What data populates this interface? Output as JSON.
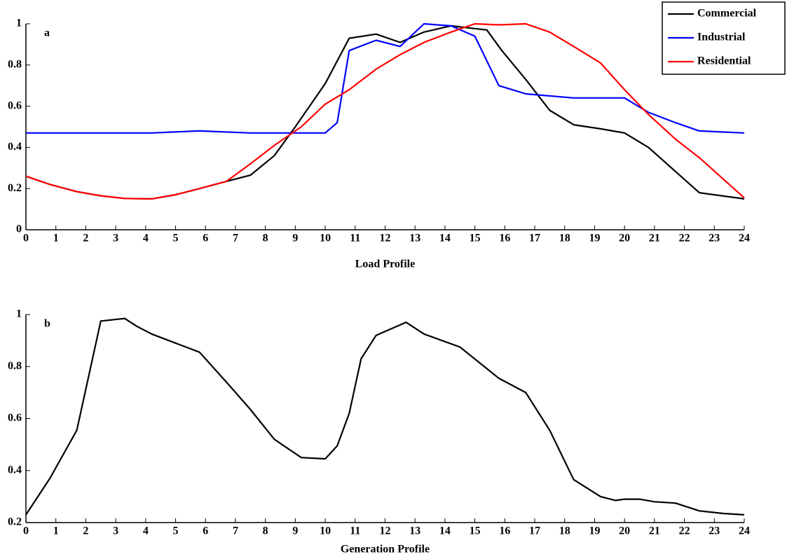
{
  "chart_data": [
    {
      "type": "line",
      "annotation": "a",
      "xlabel": "Load Profile",
      "xlim": [
        0,
        24
      ],
      "ylim": [
        0,
        1
      ],
      "xticks": [
        0,
        1,
        2,
        3,
        4,
        5,
        6,
        7,
        8,
        9,
        10,
        11,
        12,
        13,
        14,
        15,
        16,
        17,
        18,
        19,
        20,
        21,
        22,
        23,
        24
      ],
      "yticks": [
        0,
        0.2,
        0.4,
        0.6,
        0.8,
        1
      ],
      "legend": "upper right",
      "series": [
        {
          "name": "Commercial",
          "color": "#000000",
          "x": [
            0,
            0.8,
            1.7,
            2.5,
            3.3,
            4.2,
            5,
            5.8,
            6.7,
            7.5,
            8.3,
            9,
            10,
            10.8,
            11.7,
            12.5,
            13.3,
            14.2,
            15.4,
            15.9,
            16.7,
            17.5,
            18.3,
            19.2,
            20,
            20.8,
            22.5,
            24
          ],
          "values": [
            0.26,
            0.22,
            0.185,
            0.165,
            0.152,
            0.15,
            0.17,
            0.2,
            0.235,
            0.265,
            0.36,
            0.5,
            0.71,
            0.93,
            0.95,
            0.91,
            0.96,
            0.99,
            0.97,
            0.87,
            0.73,
            0.58,
            0.51,
            0.49,
            0.47,
            0.4,
            0.18,
            0.15
          ]
        },
        {
          "name": "Industrial",
          "color": "#0000ff",
          "x": [
            0,
            4.2,
            5.8,
            7.5,
            10,
            10.4,
            10.8,
            11.7,
            12.5,
            13.3,
            14.2,
            15,
            15.8,
            16.7,
            18.3,
            20,
            20.8,
            21.7,
            22.5,
            24
          ],
          "values": [
            0.47,
            0.47,
            0.48,
            0.47,
            0.47,
            0.52,
            0.87,
            0.92,
            0.89,
            1.0,
            0.99,
            0.94,
            0.7,
            0.66,
            0.64,
            0.64,
            0.57,
            0.52,
            0.48,
            0.47
          ]
        },
        {
          "name": "Residential",
          "color": "#ff0000",
          "x": [
            0,
            0.8,
            1.7,
            2.5,
            3.3,
            4.2,
            5,
            5.8,
            6.7,
            7.5,
            8.3,
            9.2,
            10,
            10.8,
            11.7,
            12.5,
            13.3,
            14.2,
            15,
            15.8,
            16.7,
            17.5,
            18.3,
            19.2,
            20,
            20.8,
            21.7,
            22.5,
            24
          ],
          "values": [
            0.26,
            0.22,
            0.185,
            0.165,
            0.152,
            0.15,
            0.17,
            0.2,
            0.235,
            0.32,
            0.41,
            0.5,
            0.61,
            0.68,
            0.78,
            0.85,
            0.91,
            0.96,
            1.0,
            0.995,
            1.0,
            0.96,
            0.89,
            0.81,
            0.68,
            0.56,
            0.44,
            0.35,
            0.155
          ]
        }
      ]
    },
    {
      "type": "line",
      "annotation": "b",
      "xlabel": "Generation Profile",
      "xlim": [
        0,
        24
      ],
      "ylim": [
        0.2,
        1
      ],
      "xticks": [
        0,
        1,
        2,
        3,
        4,
        5,
        6,
        7,
        8,
        9,
        10,
        11,
        12,
        13,
        14,
        15,
        16,
        17,
        18,
        19,
        20,
        21,
        22,
        23,
        24
      ],
      "yticks": [
        0.2,
        0.4,
        0.6,
        0.8,
        1
      ],
      "color": "#000000",
      "x": [
        0,
        0.8,
        1.7,
        2.5,
        3.3,
        3.7,
        4.2,
        5,
        5.8,
        6.7,
        7.5,
        8.3,
        9.2,
        10,
        10.4,
        10.8,
        11.2,
        11.7,
        12.7,
        13.3,
        14.5,
        15.8,
        16.7,
        17.5,
        18.3,
        19.2,
        19.7,
        20,
        20.5,
        21,
        21.7,
        22.5,
        23.3,
        24
      ],
      "values": [
        0.23,
        0.37,
        0.555,
        0.975,
        0.985,
        0.955,
        0.925,
        0.89,
        0.855,
        0.74,
        0.635,
        0.52,
        0.45,
        0.445,
        0.495,
        0.62,
        0.83,
        0.92,
        0.97,
        0.925,
        0.875,
        0.755,
        0.7,
        0.555,
        0.365,
        0.3,
        0.285,
        0.29,
        0.29,
        0.28,
        0.275,
        0.245,
        0.235,
        0.23
      ]
    }
  ]
}
